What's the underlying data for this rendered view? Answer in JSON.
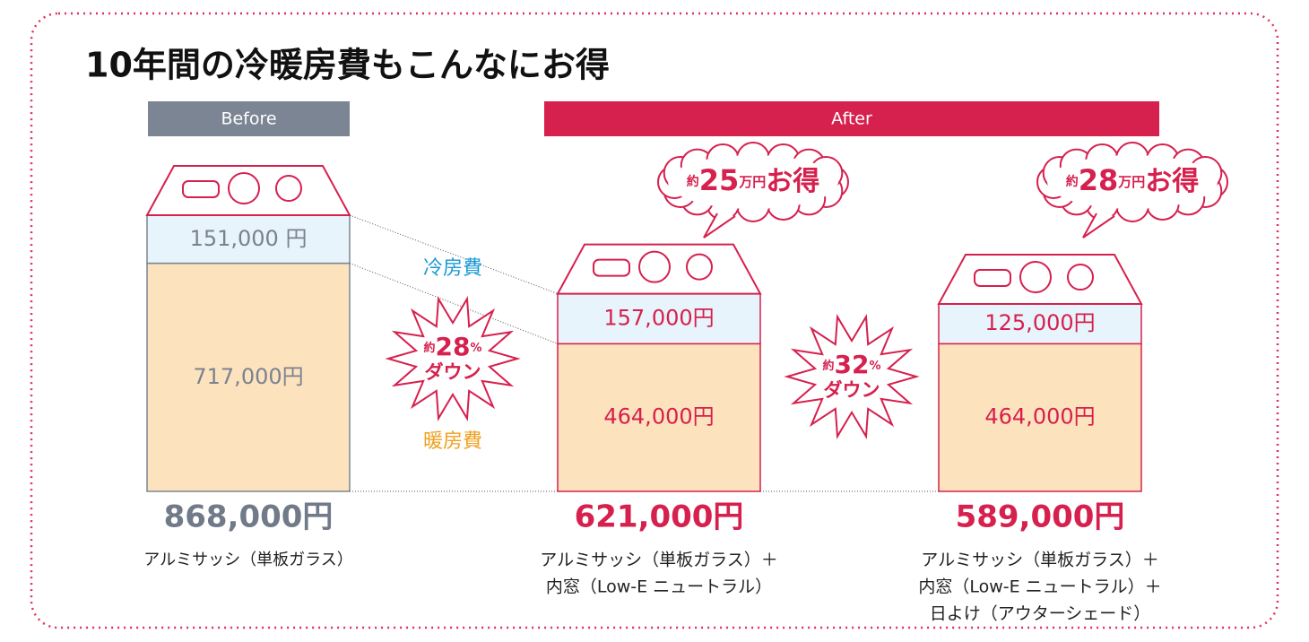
{
  "chart_data": {
    "type": "bar",
    "stacked": true,
    "title": "10年間の冷暖房費もこんなにお得",
    "groups": [
      {
        "label": "Before",
        "color": "#7b8593"
      },
      {
        "label": "After",
        "color": "#d6204e"
      }
    ],
    "categories": [
      "Before",
      "After",
      "After"
    ],
    "category_colors": [
      "#7b8593",
      "#d6204e",
      "#d6204e"
    ],
    "ylim": [
      0,
      868000
    ],
    "series": [
      {
        "name": "暖房費",
        "color": "#fde3bd",
        "label_color": "#f0a020",
        "values": [
          717000,
          464000,
          464000
        ],
        "value_labels": [
          "717,000円",
          "464,000円",
          "464,000円"
        ]
      },
      {
        "name": "冷房費",
        "color": "#e8f4fb",
        "label_color": "#1a9ad6",
        "values": [
          151000,
          157000,
          125000
        ],
        "value_labels": [
          "151,000 円",
          "157,000円",
          "125,000円"
        ]
      }
    ],
    "totals": {
      "values": [
        868000,
        621000,
        589000
      ],
      "value_labels": [
        "868,000円",
        "621,000円",
        "589,000円"
      ]
    },
    "captions": [
      [
        "アルミサッシ（単板ガラス）"
      ],
      [
        "アルミサッシ（単板ガラス）＋",
        "内窓（Low-E ニュートラル）"
      ],
      [
        "アルミサッシ（単板ガラス）＋",
        "内窓（Low-E ニュートラル）＋",
        "日よけ（アウターシェード）"
      ]
    ],
    "reductions": [
      {
        "prefix": "約",
        "number": "28",
        "unit": "%",
        "text": "ダウン"
      },
      {
        "prefix": "約",
        "number": "32",
        "unit": "%",
        "text": "ダウン"
      }
    ],
    "savings": [
      {
        "prefix": "約",
        "number": "25",
        "unit": "万円",
        "text": "お得"
      },
      {
        "prefix": "約",
        "number": "28",
        "unit": "万円",
        "text": "お得"
      }
    ]
  }
}
